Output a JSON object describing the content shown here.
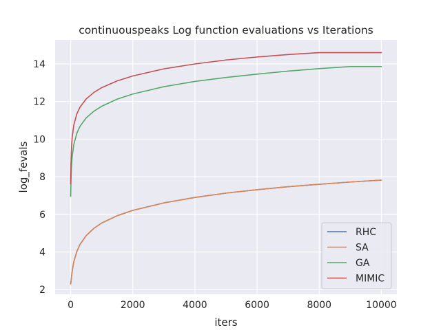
{
  "chart_data": {
    "type": "line",
    "title": "continuouspeaks Log function evaluations vs Iterations",
    "xlabel": "iters",
    "ylabel": "log_fevals",
    "xlim": [
      -500,
      10500
    ],
    "ylim": [
      1.75,
      15.28
    ],
    "xticks": [
      0,
      2000,
      4000,
      6000,
      8000,
      10000
    ],
    "xtick_labels": [
      "0",
      "2000",
      "4000",
      "6000",
      "8000",
      "10000"
    ],
    "yticks": [
      2,
      4,
      6,
      8,
      10,
      12,
      14
    ],
    "ytick_labels": [
      "2",
      "4",
      "6",
      "8",
      "10",
      "12",
      "14"
    ],
    "grid": true,
    "legend_position": "lower right",
    "x": [
      1,
      10,
      25,
      50,
      100,
      200,
      300,
      500,
      750,
      1000,
      1500,
      2000,
      3000,
      4000,
      5000,
      6000,
      7000,
      8000,
      9000,
      10000
    ],
    "series": [
      {
        "name": "RHC",
        "color": "#4c72b0",
        "values": [
          2.3,
          2.4,
          2.64,
          2.99,
          3.47,
          4.03,
          4.4,
          4.87,
          5.26,
          5.54,
          5.93,
          6.21,
          6.61,
          6.9,
          7.13,
          7.31,
          7.47,
          7.6,
          7.72,
          7.82
        ]
      },
      {
        "name": "SA",
        "color": "#dd8452",
        "values": [
          2.3,
          2.4,
          2.64,
          2.99,
          3.47,
          4.03,
          4.4,
          4.87,
          5.26,
          5.54,
          5.93,
          6.21,
          6.61,
          6.9,
          7.13,
          7.31,
          7.47,
          7.6,
          7.72,
          7.82
        ]
      },
      {
        "name": "GA",
        "color": "#55a868",
        "values": [
          6.96,
          7.75,
          8.49,
          9.09,
          9.7,
          10.32,
          10.68,
          11.13,
          11.49,
          11.75,
          12.13,
          12.4,
          12.79,
          13.07,
          13.28,
          13.46,
          13.62,
          13.75,
          13.86,
          13.86
        ]
      },
      {
        "name": "MIMIC",
        "color": "#c44e52",
        "values": [
          7.62,
          8.66,
          9.48,
          10.11,
          10.74,
          11.35,
          11.7,
          12.14,
          12.49,
          12.74,
          13.1,
          13.36,
          13.74,
          14.0,
          14.21,
          14.37,
          14.5,
          14.6,
          14.6,
          14.6
        ]
      }
    ]
  }
}
